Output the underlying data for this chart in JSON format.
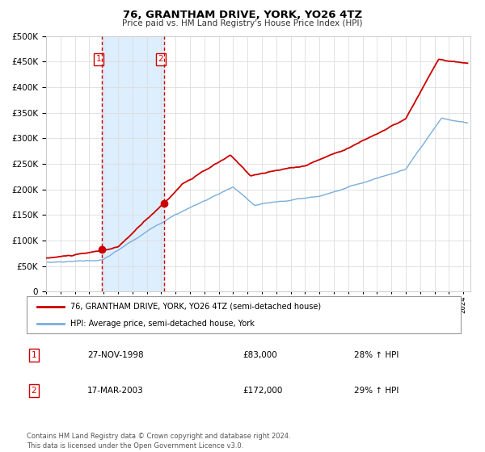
{
  "title": "76, GRANTHAM DRIVE, YORK, YO26 4TZ",
  "subtitle": "Price paid vs. HM Land Registry's House Price Index (HPI)",
  "red_label": "76, GRANTHAM DRIVE, YORK, YO26 4TZ (semi-detached house)",
  "blue_label": "HPI: Average price, semi-detached house, York",
  "transaction1_date": "27-NOV-1998",
  "transaction1_price": "£83,000",
  "transaction1_hpi": "28% ↑ HPI",
  "transaction2_date": "17-MAR-2003",
  "transaction2_price": "£172,000",
  "transaction2_hpi": "29% ↑ HPI",
  "footer": "Contains HM Land Registry data © Crown copyright and database right 2024.\nThis data is licensed under the Open Government Licence v3.0.",
  "red_color": "#cc0000",
  "blue_color": "#7aaddc",
  "shade_color": "#ddeeff",
  "grid_color": "#dddddd",
  "marker1_date": 1998.9,
  "marker1_value": 83000,
  "marker2_date": 2003.21,
  "marker2_value": 172000,
  "vline1_date": 1998.9,
  "vline2_date": 2003.21,
  "ylim_max": 500000,
  "xlim_min": 1995,
  "xlim_max": 2024.5
}
